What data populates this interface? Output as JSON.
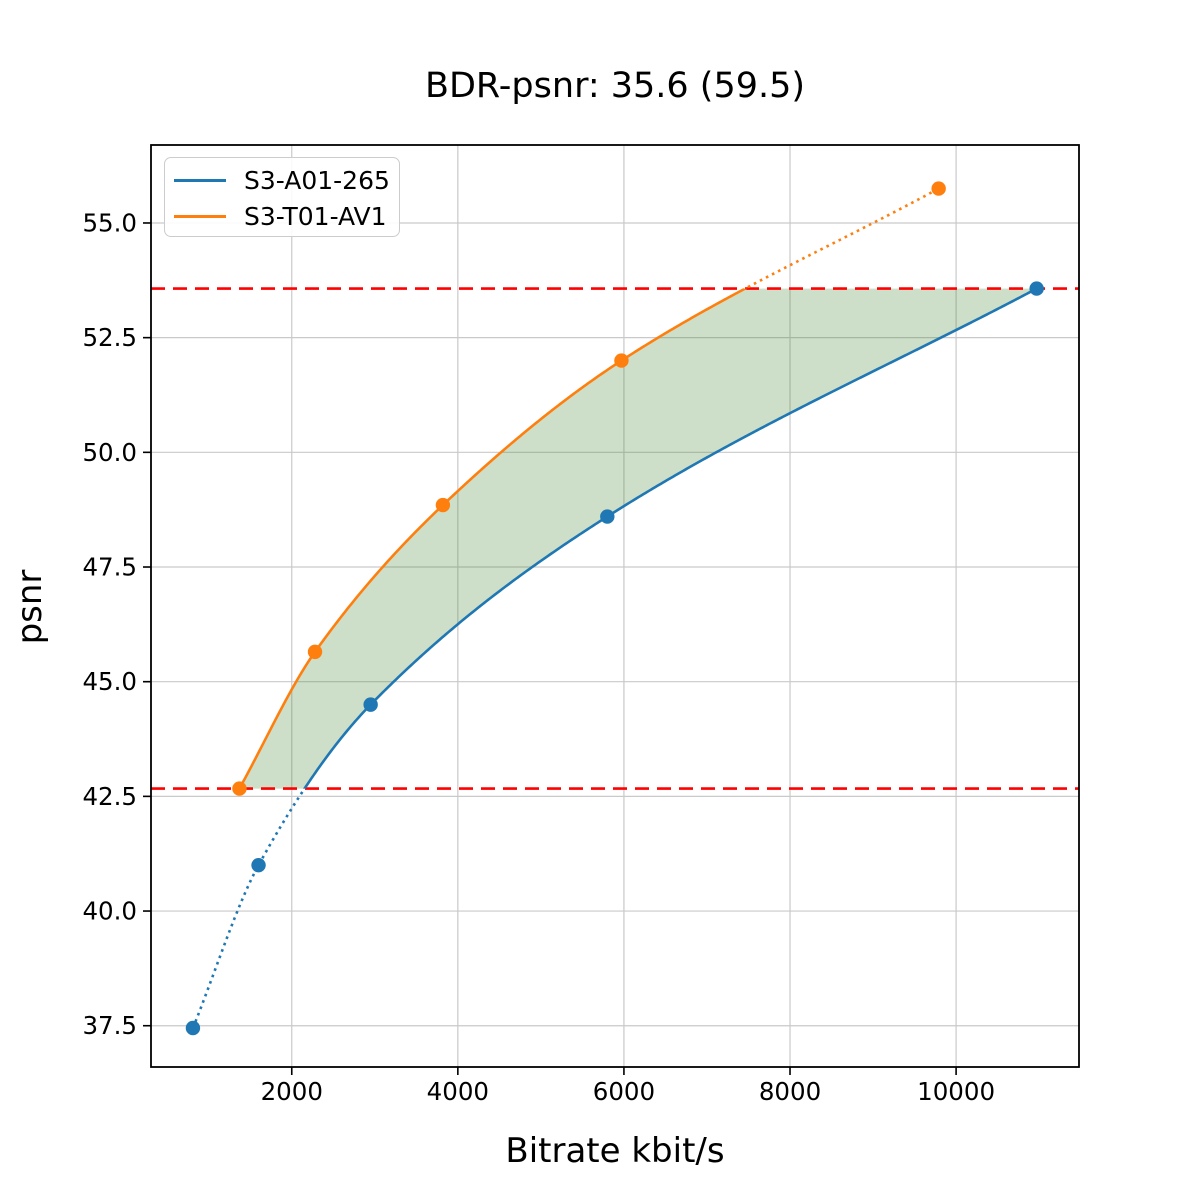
{
  "window": {
    "background": "#ffffff"
  },
  "chart_data": {
    "type": "line",
    "title": "BDR-psnr: 35.6 (59.5)",
    "xlabel": "Bitrate kbit/s",
    "ylabel": "psnr",
    "xlim": [
      305,
      11480
    ],
    "ylim": [
      36.6,
      56.7
    ],
    "xticks": [
      2000,
      4000,
      6000,
      8000,
      10000
    ],
    "yticks": [
      37.5,
      40.0,
      42.5,
      45.0,
      47.5,
      50.0,
      52.5,
      55.0
    ],
    "grid": true,
    "legend_position": "upper-left",
    "series": [
      {
        "name": "S3-A01-265",
        "color": "#1f77b4",
        "marker": "circle",
        "x": [
          810,
          1600,
          2950,
          5800,
          10970
        ],
        "y": [
          37.45,
          41.0,
          44.5,
          48.6,
          53.57
        ]
      },
      {
        "name": "S3-T01-AV1",
        "color": "#ff7f0e",
        "marker": "circle",
        "x": [
          1370,
          2280,
          3820,
          5970,
          9790
        ],
        "y": [
          42.67,
          45.65,
          48.85,
          52.0,
          55.75
        ]
      }
    ],
    "reference_lines": {
      "color": "#ff0000",
      "style": "dashed",
      "values": [
        42.67,
        53.57
      ]
    },
    "solid_psnr_range": [
      42.67,
      53.57
    ],
    "shaded_region": {
      "color": "#4a8a38",
      "opacity": 0.27,
      "description": "area between the two rate-distortion curves clipped to the reference lines"
    },
    "styles": {
      "grid_color": "#c9c9c9",
      "axes_color": "#000000",
      "tick_label_size": 24.5,
      "line_width": 2.6
    }
  }
}
